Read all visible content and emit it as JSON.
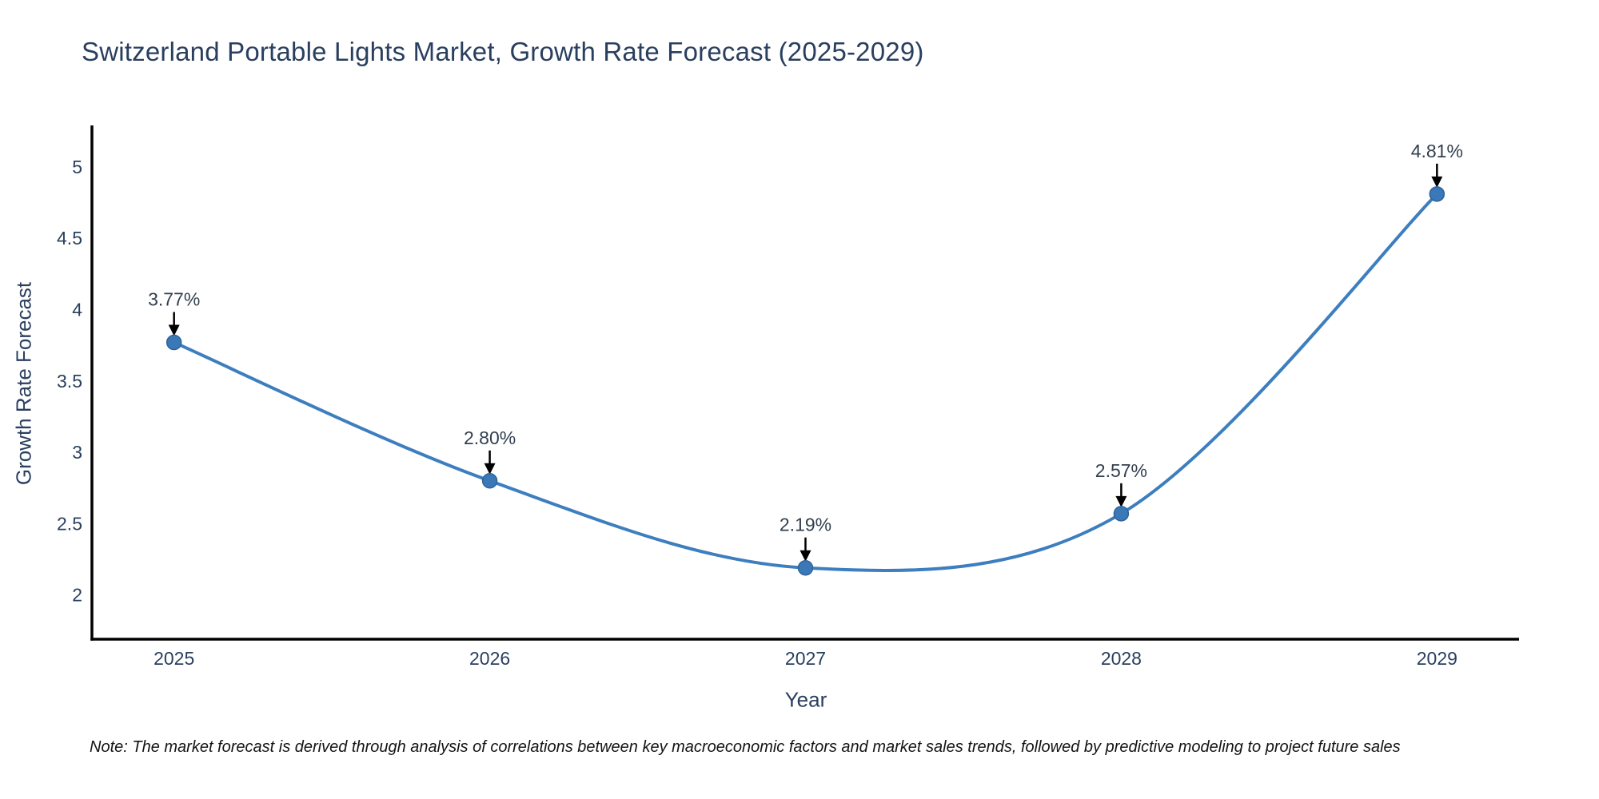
{
  "title": "Switzerland Portable Lights Market, Growth Rate Forecast (2025-2029)",
  "note": "Note: The market forecast is derived through analysis of correlations between key macroeconomic factors and market sales trends, followed by predictive modeling to project future sales",
  "chart_data": {
    "type": "line",
    "title": "Switzerland Portable Lights Market, Growth Rate Forecast (2025-2029)",
    "xlabel": "Year",
    "ylabel": "Growth Rate Forecast",
    "x": [
      2025,
      2026,
      2027,
      2028,
      2029
    ],
    "values": [
      3.77,
      2.8,
      2.19,
      2.57,
      4.81
    ],
    "point_labels": [
      "3.77%",
      "2.80%",
      "2.19%",
      "2.57%",
      "4.81%"
    ],
    "xtick_labels": [
      "2025",
      "2026",
      "2027",
      "2028",
      "2029"
    ],
    "yticks": [
      2,
      2.5,
      3,
      3.5,
      4,
      4.5,
      5
    ],
    "ytick_labels": [
      "2",
      "2.5",
      "3",
      "3.5",
      "4",
      "4.5",
      "5"
    ],
    "xlim": [
      2024.74,
      2029.26
    ],
    "ylim": [
      1.69,
      5.285
    ],
    "grid": false,
    "legend": "none",
    "line_shape": "spline",
    "colors": {
      "line": "#3d7ebf",
      "marker_fill": "#3a78b8",
      "marker_edge": "#2f639a",
      "annotation_arrow": "#000000",
      "spine": "#000000",
      "text": "#2a3f5f"
    }
  }
}
